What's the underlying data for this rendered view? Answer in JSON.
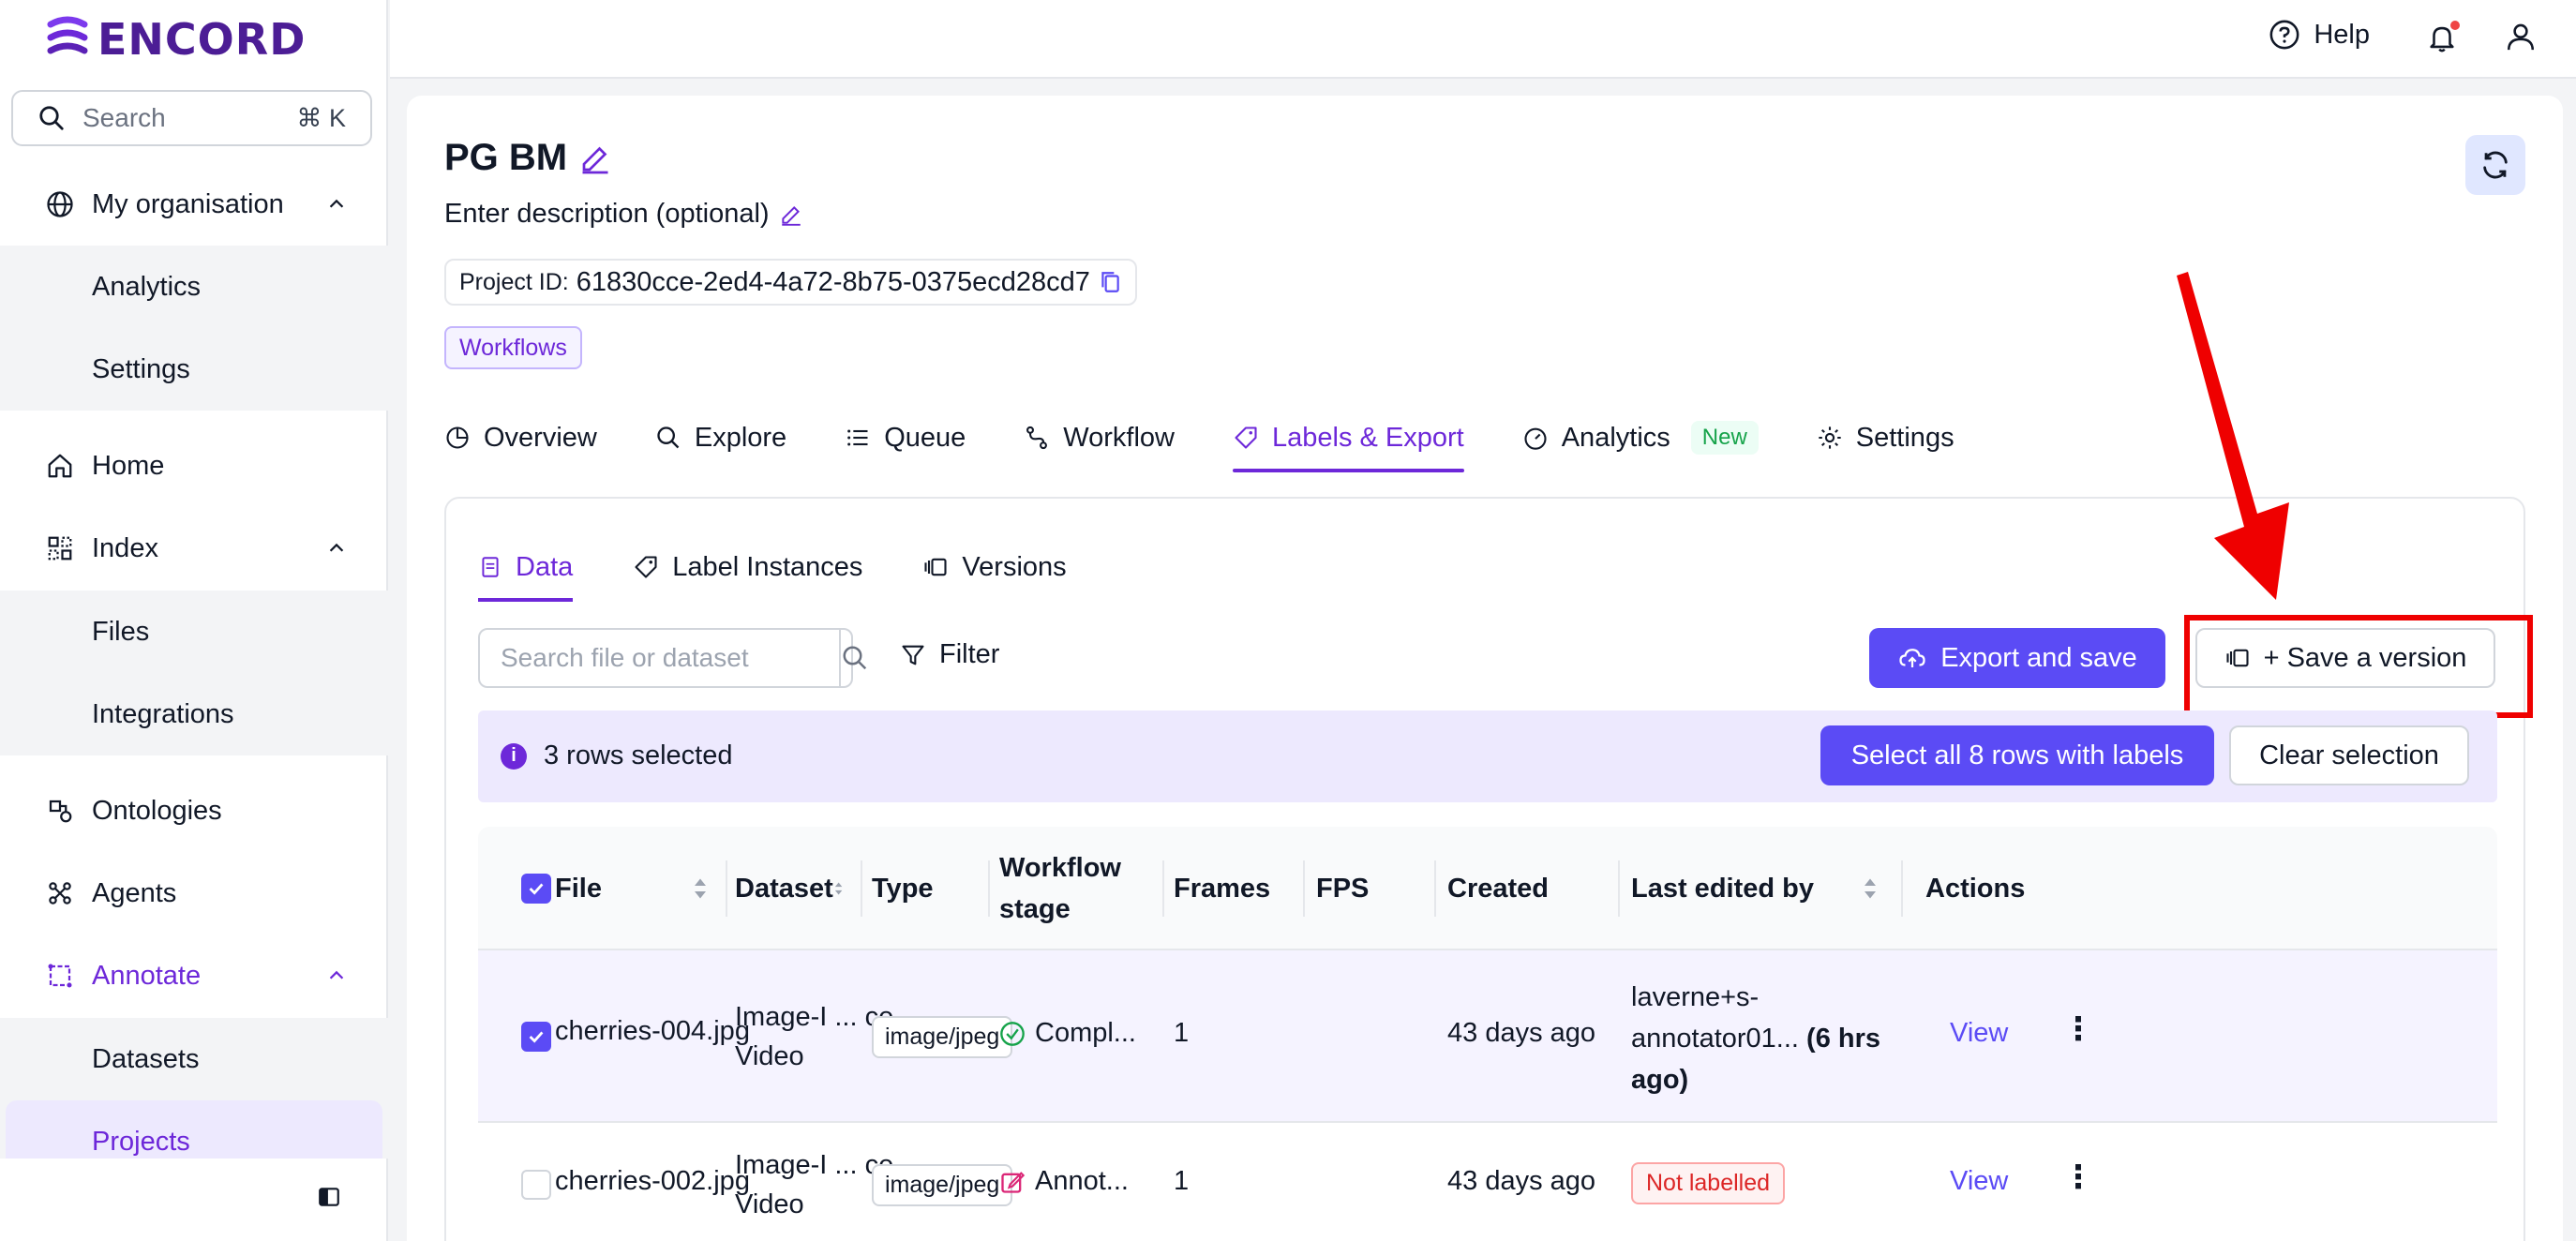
{
  "brand": {
    "logo_text": "ENCORD"
  },
  "sidebar": {
    "search_label": "Search",
    "search_shortcut": "⌘ K",
    "org": "My organisation",
    "org_sub": [
      "Analytics",
      "Settings"
    ],
    "home": "Home",
    "index": "Index",
    "index_sub": [
      "Files",
      "Integrations"
    ],
    "ontologies": "Ontologies",
    "agents": "Agents",
    "annotate": "Annotate",
    "annotate_sub": [
      "Datasets",
      "Projects"
    ]
  },
  "topbar": {
    "help": "Help"
  },
  "project": {
    "title": "PG BM",
    "description": "Enter description (optional)",
    "id_label": "Project ID:",
    "id_value": "61830cce-2ed4-4a72-8b75-0375ecd28cd7",
    "tag": "Workflows"
  },
  "tabs": {
    "overview": "Overview",
    "explore": "Explore",
    "queue": "Queue",
    "workflow": "Workflow",
    "labels_export": "Labels & Export",
    "analytics": "Analytics",
    "analytics_badge": "New",
    "settings": "Settings"
  },
  "subtabs": {
    "data": "Data",
    "label_instances": "Label Instances",
    "versions": "Versions"
  },
  "toolbar": {
    "search_placeholder": "Search file or dataset",
    "filter": "Filter",
    "export": "Export and save",
    "save_version": "+ Save a version"
  },
  "selection": {
    "text": "3 rows selected",
    "select_all": "Select all 8 rows with labels",
    "clear": "Clear selection"
  },
  "table": {
    "headers": {
      "file": "File",
      "dataset": "Dataset",
      "type": "Type",
      "workflow_stage_1": "Workflow",
      "workflow_stage_2": "stage",
      "frames": "Frames",
      "fps": "FPS",
      "created": "Created",
      "last_edited": "Last edited by",
      "actions": "Actions"
    },
    "rows": [
      {
        "file": "cherries-004.jpg",
        "dataset_1": "Image-I ... ce-",
        "dataset_2": "Video",
        "type": "image/jpeg",
        "stage": "Compl...",
        "frames": "1",
        "fps": "",
        "created": "43 days ago",
        "edited_1": "laverne+s-",
        "edited_2": "annotator01...",
        "edited_bold": "(6 hrs",
        "edited_3": "ago)",
        "action": "View"
      },
      {
        "file": "cherries-002.jpg",
        "dataset_1": "Image-I ... ce-",
        "dataset_2": "Video",
        "type": "image/jpeg",
        "stage": "Annot...",
        "frames": "1",
        "fps": "",
        "created": "43 days ago",
        "edited_badge": "Not labelled",
        "action": "View"
      }
    ]
  },
  "colors": {
    "accent": "#5b4bf5",
    "highlight": "#ef0000"
  }
}
